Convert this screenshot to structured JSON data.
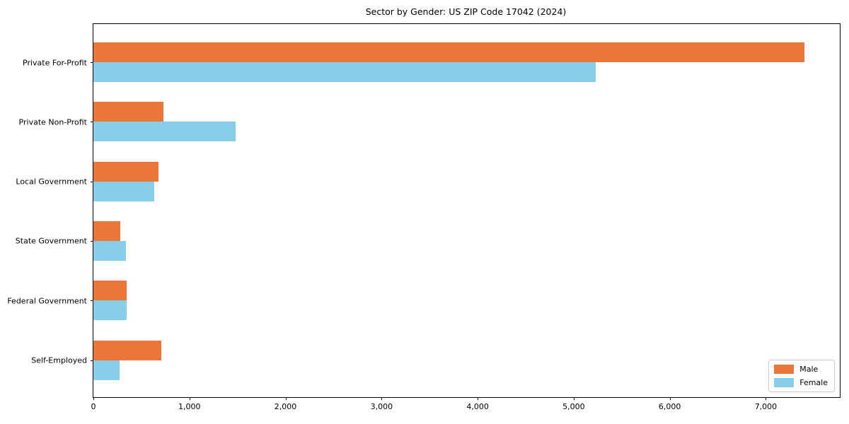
{
  "figure": {
    "title": "Sector by Gender: US ZIP Code 17042 (2024)"
  },
  "colors": {
    "male": "#EC7639",
    "female": "#87CEEB",
    "axis": "#000000",
    "background": "#FFFFFF",
    "legend_border": "#CCCCCC"
  },
  "legend": {
    "position": "lower right",
    "items": [
      {
        "label": "Male",
        "color": "#EC7639"
      },
      {
        "label": "Female",
        "color": "#87CEEB"
      }
    ]
  },
  "chart_data": {
    "type": "bar",
    "orientation": "horizontal",
    "title": "Sector by Gender: US ZIP Code 17042 (2024)",
    "categories": [
      "Private For-Profit",
      "Private Non-Profit",
      "Local Government",
      "State Government",
      "Federal Government",
      "Self-Employed"
    ],
    "series": [
      {
        "name": "Male",
        "color": "#EC7639",
        "values": [
          7400,
          730,
          680,
          280,
          345,
          710
        ]
      },
      {
        "name": "Female",
        "color": "#87CEEB",
        "values": [
          5230,
          1480,
          630,
          340,
          345,
          275
        ]
      }
    ],
    "xlabel": "",
    "ylabel": "",
    "xlim": [
      0,
      7770
    ],
    "xticks": [
      0,
      1000,
      2000,
      3000,
      4000,
      5000,
      6000,
      7000
    ],
    "xtick_labels": [
      "0",
      "1,000",
      "2,000",
      "3,000",
      "4,000",
      "5,000",
      "6,000",
      "7,000"
    ],
    "grid": false,
    "legend_position": "lower right"
  }
}
